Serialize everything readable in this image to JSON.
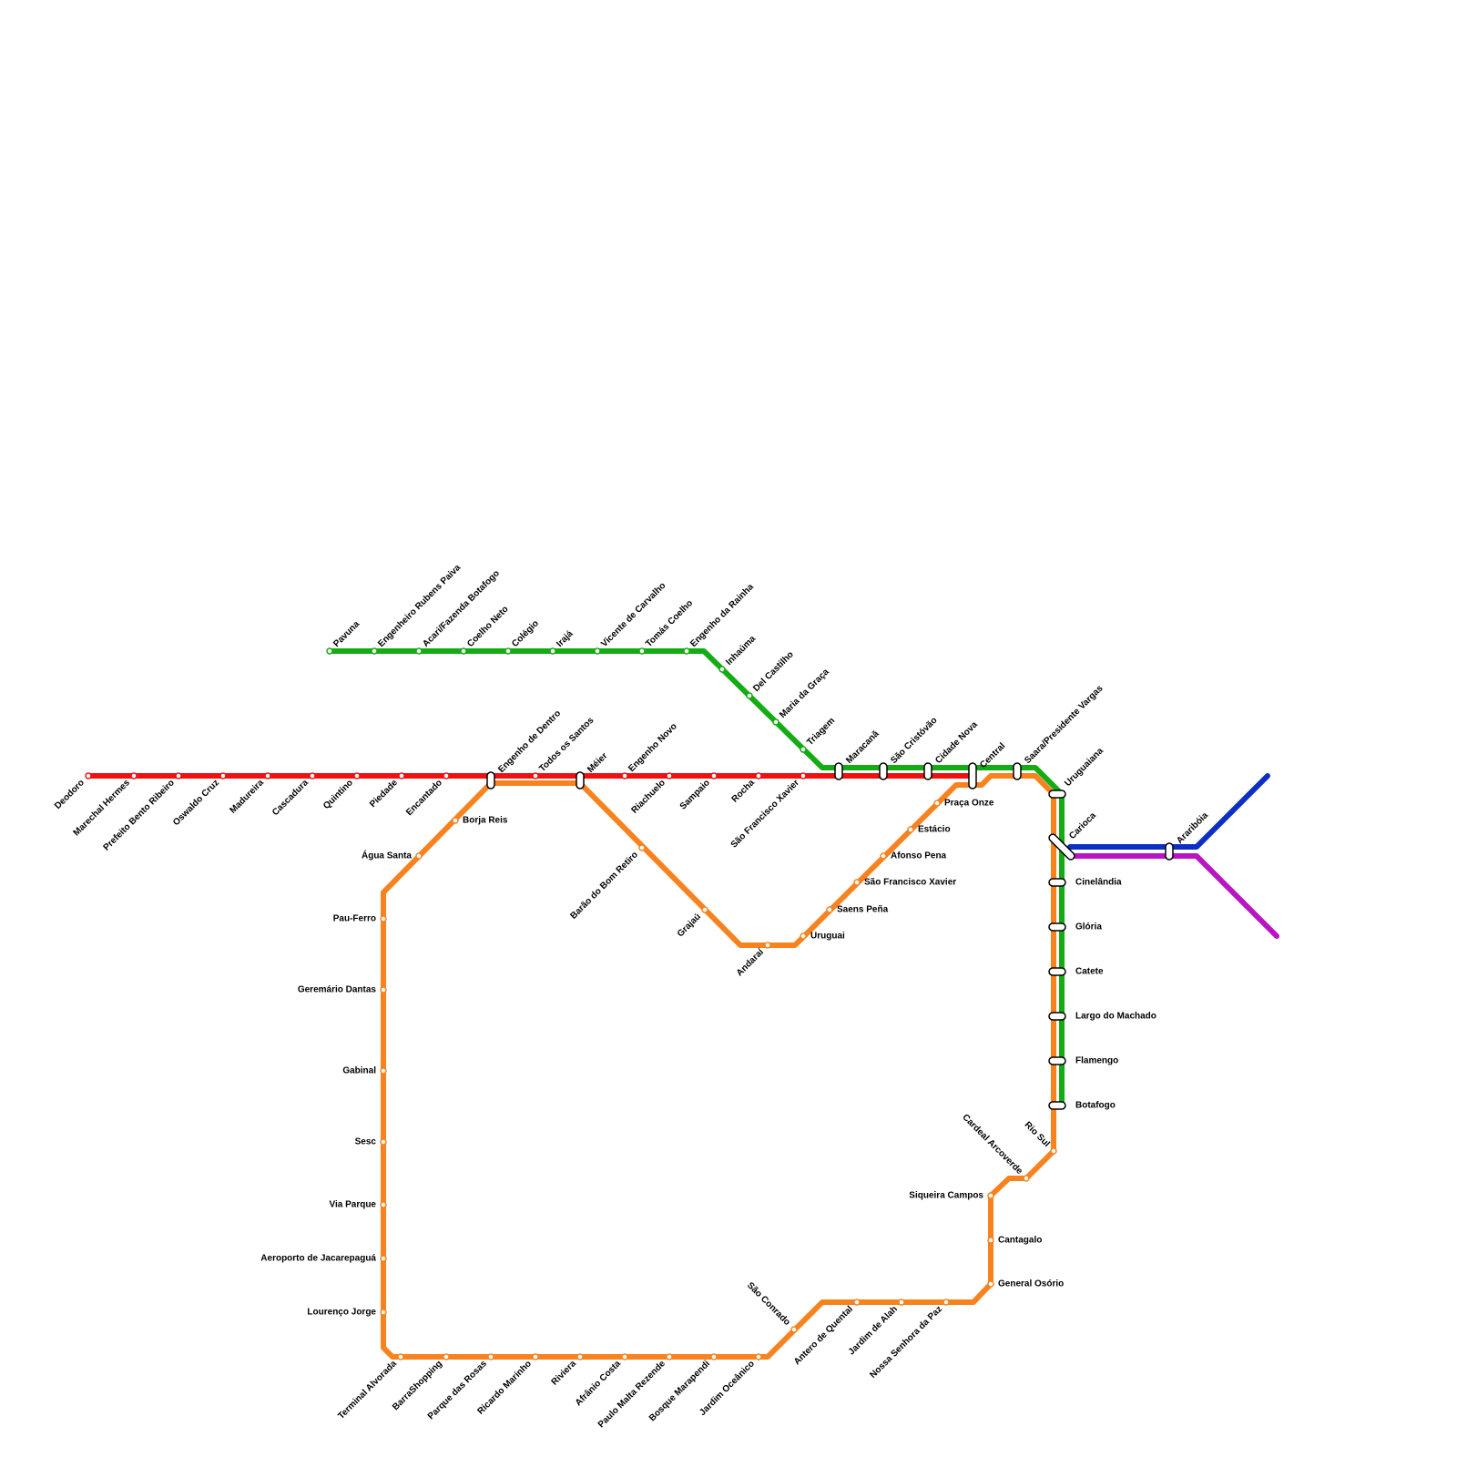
{
  "stations": [
    "Deodoro",
    "Marechal Hermes",
    "Prefeito Bento Ribeiro",
    "Oswaldo Cruz",
    "Madureira",
    "Cascadura",
    "Quintino",
    "Piedade",
    "Encantado",
    "Engenho de Dentro",
    "Todos os Santos",
    "Méier",
    "Engenho Novo",
    "Riachuelo",
    "Sampaio",
    "Rocha",
    "São Francisco Xavier",
    "Maracanã",
    "São Cristóvão",
    "Cidade Nova",
    "Central",
    "Saara/Presidente Vargas",
    "Uruguaiana",
    "Carioca",
    "Cinelândia",
    "Glória",
    "Catete",
    "Largo do Machado",
    "Flamengo",
    "Botafogo",
    "Araribóia",
    "Pavuna",
    "Engenheiro Rubens Paiva",
    "Acari/Fazenda Botafogo",
    "Coelho Neto",
    "Colégio",
    "Irajá",
    "Vicente de Carvalho",
    "Tomás Coelho",
    "Engenho da Rainha",
    "Inhaúma",
    "Del Castilho",
    "Maria da Graça",
    "Triagem",
    "Borja Reis",
    "Água Santa",
    "Pau-Ferro",
    "Geremário Dantas",
    "Gabinal",
    "Sesc",
    "Via Parque",
    "Aeroporto de Jacarepaguá",
    "Lourenço Jorge",
    "Terminal Alvorada",
    "BarraShopping",
    "Parque das Rosas",
    "Ricardo Marinho",
    "Riviera",
    "Afrânio Costa",
    "Paulo Malta Rezende",
    "Bosque Marapendi",
    "Jardim Oceânico",
    "São Conrado",
    "Antero de Quental",
    "Jardim de Alah",
    "Nossa Senhora da Paz",
    "General Osório",
    "Cantagalo",
    "Siqueira Campos",
    "Cardeal Arcoverde",
    "Rio Sul",
    "Barão do Bom Retiro",
    "Grajaú",
    "Andaraí",
    "Uruguai",
    "Saens Peña",
    "São Francisco Xavier",
    "Afonso Pena",
    "Estácio",
    "Praça Onze"
  ]
}
